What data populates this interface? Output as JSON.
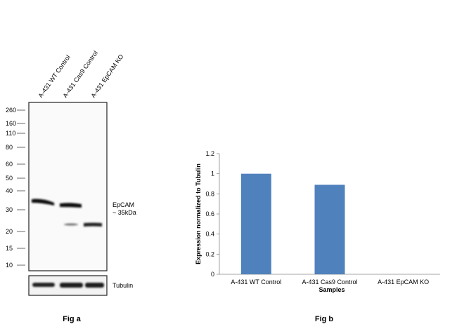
{
  "fig_a": {
    "caption": "Fig a",
    "lanes": [
      "A-431 WT Control",
      "A-431 Cas9 Control",
      "A-431 EpCAM KO"
    ],
    "markers": [
      "260",
      "160",
      "110",
      "80",
      "60",
      "50",
      "40",
      "30",
      "20",
      "15",
      "10"
    ],
    "band_label_line1": "EpCAM",
    "band_label_line2": "~ 35kDa",
    "loading_label": "Tubulin"
  },
  "fig_b": {
    "caption": "Fig b"
  },
  "chart_data": {
    "type": "bar",
    "categories": [
      "A-431 WT Control",
      "A-431 Cas9 Control",
      "A-431 EpCAM KO"
    ],
    "values": [
      1.0,
      0.89,
      0.0
    ],
    "title": "",
    "xlabel": "Samples",
    "ylabel": "Expression  normalized to Tubulin",
    "ylim": [
      0,
      1.2
    ],
    "yticks": [
      "0",
      "0.2",
      "0.4",
      "0.6",
      "0.8",
      "1",
      "1.2"
    ],
    "bar_color": "#4f81bd",
    "grid": false
  }
}
